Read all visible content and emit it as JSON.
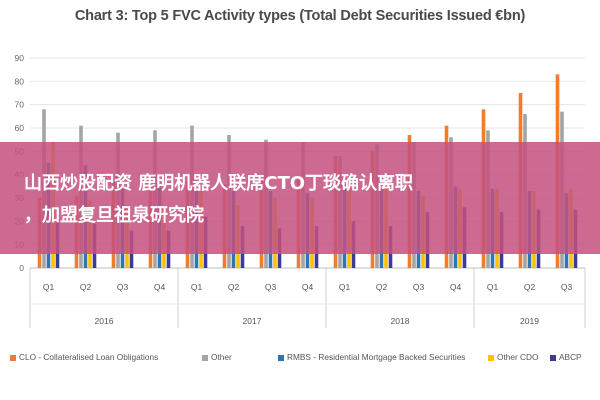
{
  "overlay": {
    "line1": "山西炒股配资 鹿明机器人联席CTO丁琰确认离职",
    "line2": "，加盟复旦祖泉研究院"
  },
  "chart_data": {
    "type": "bar",
    "title": "Chart 3: Top 5 FVC Activity types (Total Debt Securities Issued €bn)",
    "categories": [
      "Q1",
      "Q2",
      "Q3",
      "Q4",
      "Q1",
      "Q2",
      "Q3",
      "Q4",
      "Q1",
      "Q2",
      "Q3",
      "Q4",
      "Q1",
      "Q2",
      "Q3"
    ],
    "groups": [
      {
        "label": "2016",
        "count": 4
      },
      {
        "label": "2017",
        "count": 4
      },
      {
        "label": "2018",
        "count": 4
      },
      {
        "label": "2019",
        "count": 3
      }
    ],
    "ylim": [
      0,
      90
    ],
    "yticks": [
      0,
      10,
      20,
      30,
      40,
      50,
      60,
      70,
      80,
      90
    ],
    "grid": true,
    "legend_position": "bottom",
    "series": [
      {
        "name": "CLO - Collateralised Loan Obligations",
        "color": "#ee7d31",
        "values": [
          30,
          31,
          37,
          36,
          37,
          36,
          38,
          38,
          48,
          50,
          57,
          61,
          68,
          75,
          83
        ]
      },
      {
        "name": "Other",
        "color": "#a5a5a5",
        "values": [
          68,
          61,
          58,
          59,
          61,
          57,
          55,
          54,
          48,
          53,
          54,
          56,
          59,
          66,
          67
        ]
      },
      {
        "name": "RMBS - Residential Mortgage Backed Securities",
        "color": "#2e75b6",
        "values": [
          45,
          44,
          35,
          36,
          33,
          33,
          33,
          32,
          36,
          34,
          33,
          35,
          34,
          33,
          32
        ]
      },
      {
        "name": "Other CDO",
        "color": "#ffc000",
        "values": [
          54,
          29,
          27,
          27,
          33,
          27,
          30,
          30,
          35,
          35,
          31,
          34,
          34,
          33,
          34
        ]
      },
      {
        "name": "ABCP",
        "color": "#3b3b98",
        "values": [
          21,
          19,
          16,
          16,
          22,
          18,
          17,
          18,
          20,
          18,
          24,
          26,
          24,
          25,
          25
        ]
      }
    ]
  }
}
